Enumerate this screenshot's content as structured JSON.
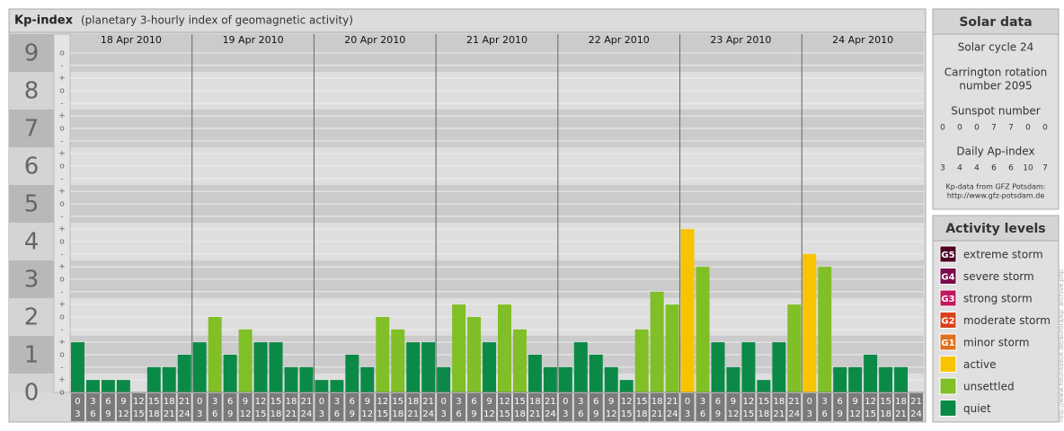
{
  "chart_data": {
    "type": "bar",
    "title": "Kp-index",
    "subtitle": "(planetary 3-hourly index of geomagnetic activity)",
    "days": [
      "18 Apr 2010",
      "19 Apr 2010",
      "20 Apr 2010",
      "21 Apr 2010",
      "22 Apr 2010",
      "23 Apr 2010",
      "24 Apr 2010"
    ],
    "hours": [
      [
        "0",
        "3"
      ],
      [
        "3",
        "6"
      ],
      [
        "6",
        "9"
      ],
      [
        "9",
        "12"
      ],
      [
        "12",
        "15"
      ],
      [
        "15",
        "18"
      ],
      [
        "18",
        "21"
      ],
      [
        "21",
        "24"
      ]
    ],
    "values": [
      1.33,
      0.33,
      0.33,
      0.33,
      0,
      0.67,
      0.67,
      1,
      1.33,
      2,
      1,
      1.67,
      1.33,
      1.33,
      0.67,
      0.67,
      0.33,
      0.33,
      1,
      0.67,
      2,
      1.67,
      1.33,
      1.33,
      0.67,
      2.33,
      2,
      1.33,
      2.33,
      1.67,
      1,
      0.67,
      0.67,
      1.33,
      1,
      0.67,
      0.33,
      1.67,
      2.67,
      2.33,
      4.33,
      3.33,
      1.33,
      0.67,
      1.33,
      0.33,
      1.33,
      2.33,
      3.67,
      3.33,
      0.67,
      0.67,
      1,
      0.67,
      0.67,
      0
    ],
    "colors": [
      "#0a8a46",
      "#0a8a46",
      "#0a8a46",
      "#0a8a46",
      "#0a8a46",
      "#0a8a46",
      "#0a8a46",
      "#0a8a46",
      "#0a8a46",
      "#80bf26",
      "#0a8a46",
      "#80bf26",
      "#0a8a46",
      "#0a8a46",
      "#0a8a46",
      "#0a8a46",
      "#0a8a46",
      "#0a8a46",
      "#0a8a46",
      "#0a8a46",
      "#80bf26",
      "#80bf26",
      "#0a8a46",
      "#0a8a46",
      "#0a8a46",
      "#80bf26",
      "#80bf26",
      "#0a8a46",
      "#80bf26",
      "#80bf26",
      "#0a8a46",
      "#0a8a46",
      "#0a8a46",
      "#0a8a46",
      "#0a8a46",
      "#0a8a46",
      "#0a8a46",
      "#80bf26",
      "#80bf26",
      "#80bf26",
      "#f8c400",
      "#80bf26",
      "#0a8a46",
      "#0a8a46",
      "#0a8a46",
      "#0a8a46",
      "#0a8a46",
      "#80bf26",
      "#f8c400",
      "#80bf26",
      "#0a8a46",
      "#0a8a46",
      "#0a8a46",
      "#0a8a46",
      "#0a8a46",
      "#0a8a46"
    ],
    "ylim": [
      0,
      9
    ],
    "yticks": [
      0,
      1,
      2,
      3,
      4,
      5,
      6,
      7,
      8,
      9
    ],
    "minor_ticks": [
      {
        "value": 9,
        "label": "o"
      },
      {
        "value": 8.67,
        "label": "-"
      },
      {
        "value": 8.33,
        "label": "+"
      },
      {
        "value": 8,
        "label": "o"
      },
      {
        "value": 7.67,
        "label": "-"
      },
      {
        "value": 7.33,
        "label": "+"
      },
      {
        "value": 7,
        "label": "o"
      },
      {
        "value": 6.67,
        "label": "-"
      },
      {
        "value": 6.33,
        "label": "+"
      },
      {
        "value": 6,
        "label": "o"
      },
      {
        "value": 5.67,
        "label": "-"
      },
      {
        "value": 5.33,
        "label": "+"
      },
      {
        "value": 5,
        "label": "o"
      },
      {
        "value": 4.67,
        "label": "-"
      },
      {
        "value": 4.33,
        "label": "+"
      },
      {
        "value": 4,
        "label": "o"
      },
      {
        "value": 3.67,
        "label": "-"
      },
      {
        "value": 3.33,
        "label": "+"
      },
      {
        "value": 3,
        "label": "o"
      },
      {
        "value": 2.67,
        "label": "-"
      },
      {
        "value": 2.33,
        "label": "+"
      },
      {
        "value": 2,
        "label": "o"
      },
      {
        "value": 1.67,
        "label": "-"
      },
      {
        "value": 1.33,
        "label": "+"
      },
      {
        "value": 1,
        "label": "o"
      },
      {
        "value": 0.67,
        "label": "-"
      },
      {
        "value": 0.33,
        "label": "+"
      },
      {
        "value": 0,
        "label": "o"
      }
    ],
    "grid": true
  },
  "solar": {
    "title": "Solar data",
    "cycle": "Solar cycle 24",
    "carrington": [
      "Carrington rotation",
      "number 2095"
    ],
    "sunspot_title": "Sunspot number",
    "sunspot": [
      0,
      0,
      0,
      7,
      7,
      0,
      0
    ],
    "ap_title": "Daily Ap-index",
    "ap": [
      3,
      4,
      4,
      6,
      6,
      10,
      7
    ],
    "source": [
      "Kp-data from GFZ Potsdam:",
      "http://www.gfz-potsdam.de"
    ]
  },
  "legend": {
    "title": "Activity levels",
    "items": [
      {
        "badge": "G5",
        "label": "extreme storm",
        "color": "#4d0026"
      },
      {
        "badge": "G4",
        "label": "severe storm",
        "color": "#7a0a4a"
      },
      {
        "badge": "G3",
        "label": "strong storm",
        "color": "#c0185e"
      },
      {
        "badge": "G2",
        "label": "moderate storm",
        "color": "#d8401a"
      },
      {
        "badge": "G1",
        "label": "minor storm",
        "color": "#e07020"
      },
      {
        "label": "active",
        "color": "#f8c400"
      },
      {
        "label": "unsettled",
        "color": "#80bf26"
      },
      {
        "label": "quiet",
        "color": "#0a8a46"
      }
    ]
  },
  "url": "http://www.fleurisseuk.de/aurora/kp_archive.php"
}
